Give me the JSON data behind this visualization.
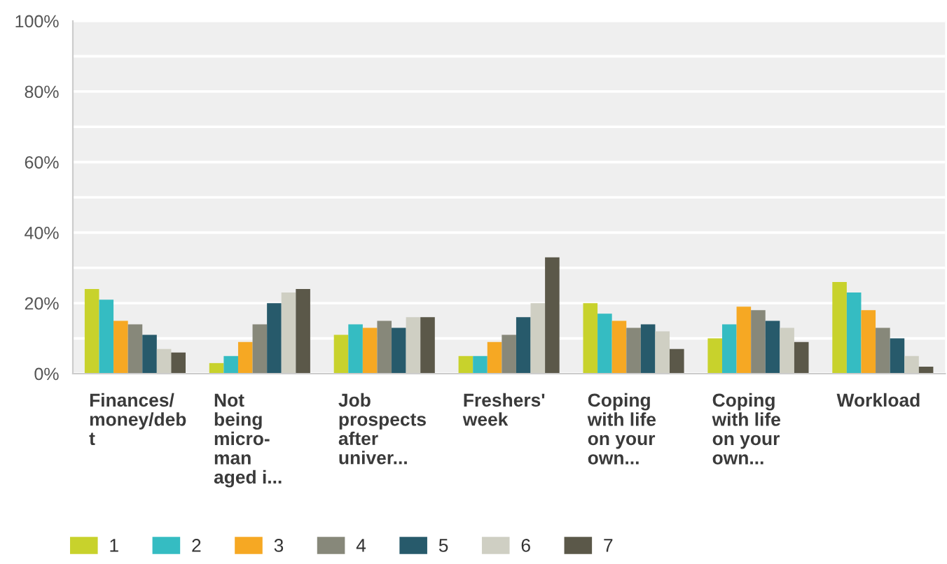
{
  "chart_data": {
    "type": "bar",
    "categories": [
      "Finances/\nmoney/deb\nt",
      "Not\nbeing\nmicro-\nman\naged i...",
      "Job\nprospects\nafter\nuniver...",
      "Freshers'\nweek",
      "Coping\nwith life\non your\nown...",
      "Coping\nwith life\non your\nown...",
      "Workload"
    ],
    "series": [
      {
        "name": "1",
        "color": "#c8d22c",
        "values": [
          24,
          3,
          11,
          5,
          20,
          10,
          26
        ]
      },
      {
        "name": "2",
        "color": "#35bcc2",
        "values": [
          21,
          5,
          14,
          5,
          17,
          14,
          23
        ]
      },
      {
        "name": "3",
        "color": "#f6a823",
        "values": [
          15,
          9,
          13,
          9,
          15,
          19,
          18
        ]
      },
      {
        "name": "4",
        "color": "#87887a",
        "values": [
          14,
          14,
          15,
          11,
          13,
          18,
          13
        ]
      },
      {
        "name": "5",
        "color": "#275a6b",
        "values": [
          11,
          20,
          13,
          16,
          14,
          15,
          10
        ]
      },
      {
        "name": "6",
        "color": "#cfcfc3",
        "values": [
          7,
          23,
          16,
          20,
          12,
          13,
          5
        ]
      },
      {
        "name": "7",
        "color": "#5b5849",
        "values": [
          6,
          24,
          16,
          33,
          7,
          9,
          2
        ]
      }
    ],
    "ylim": [
      0,
      100
    ],
    "yticks": [
      {
        "value": 0,
        "label": "0%"
      },
      {
        "value": 10,
        "label": null
      },
      {
        "value": 20,
        "label": "20%"
      },
      {
        "value": 30,
        "label": null
      },
      {
        "value": 40,
        "label": "40%"
      },
      {
        "value": 50,
        "label": null
      },
      {
        "value": 60,
        "label": "60%"
      },
      {
        "value": 70,
        "label": null
      },
      {
        "value": 80,
        "label": "80%"
      },
      {
        "value": 90,
        "label": null
      },
      {
        "value": 100,
        "label": "100%"
      }
    ],
    "grid": "y",
    "legend": "bottom"
  }
}
